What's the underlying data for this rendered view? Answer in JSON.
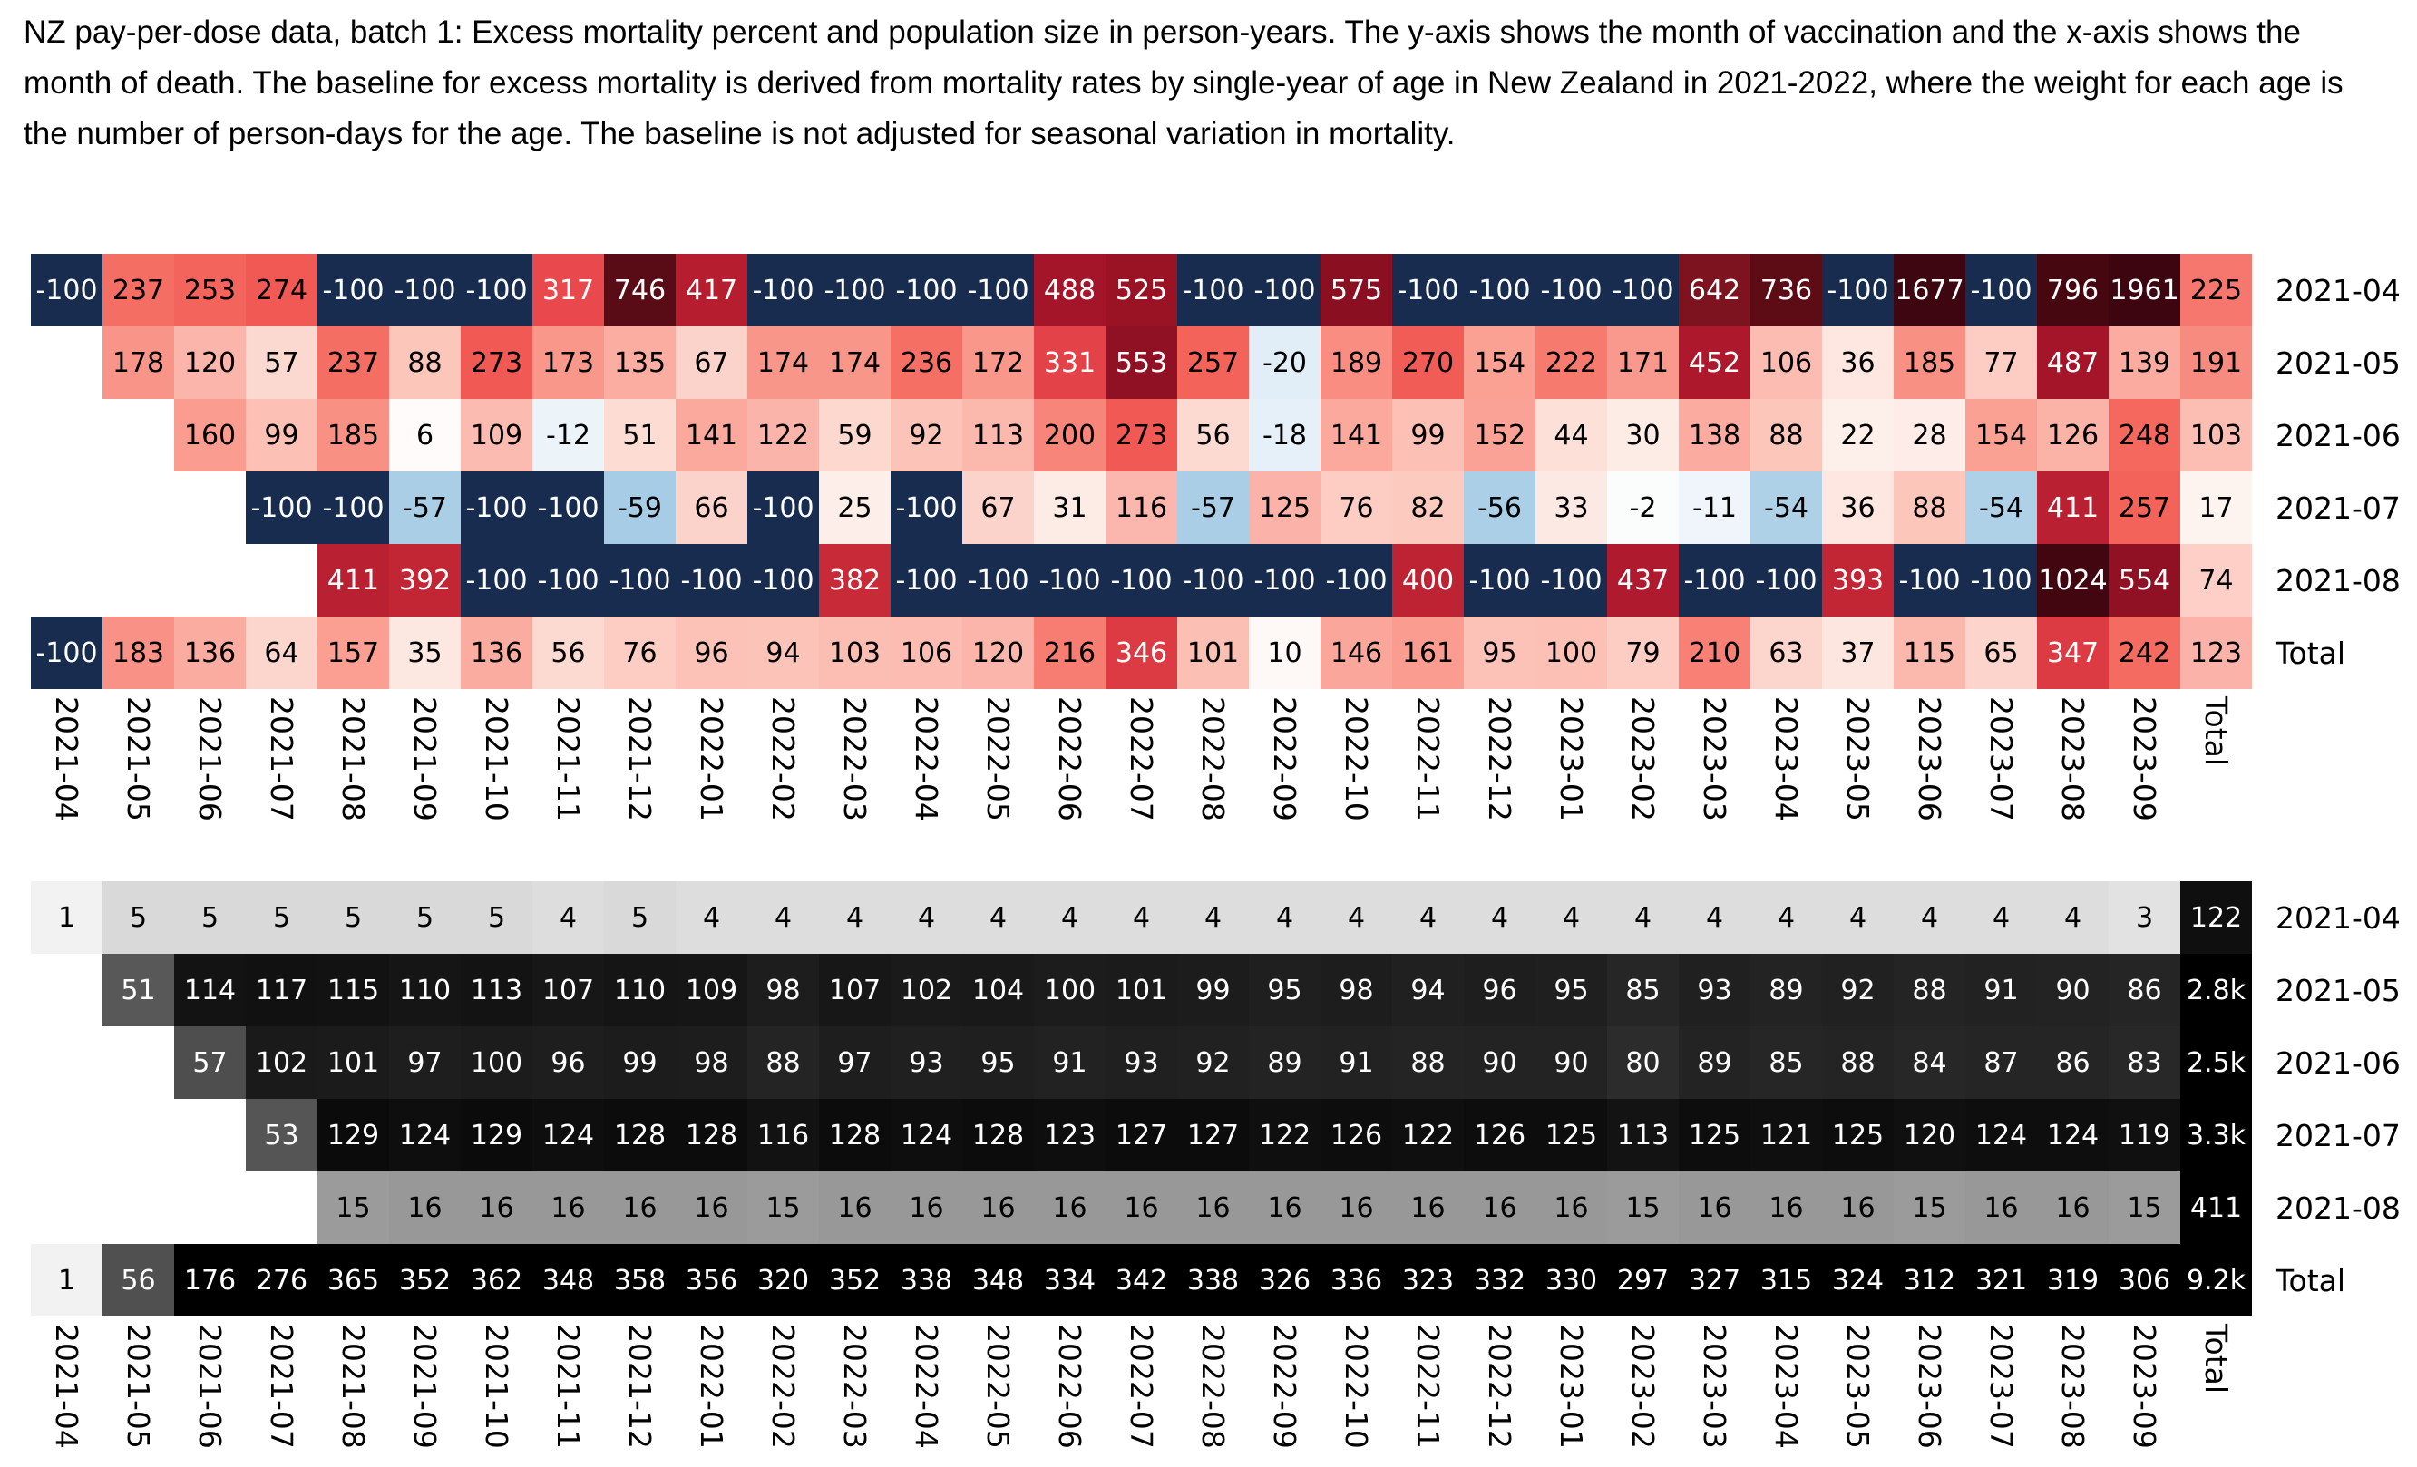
{
  "title": "NZ pay-per-dose data, batch 1: Excess mortality percent and population size in person-years. The y-axis shows the month of vaccination and the x-axis shows the month of death. The baseline for excess mortality is derived from mortality rates by single-year of age in New Zealand in 2021-2022, where the weight for each age is the number of person-days for the age. The baseline is not adjusted for seasonal variation in mortality.",
  "chart_data": [
    {
      "type": "heatmap",
      "name": "excess-mortality-percent",
      "xlabel": "month of death",
      "ylabel": "month of vaccination",
      "x_labels": [
        "2021-04",
        "2021-05",
        "2021-06",
        "2021-07",
        "2021-08",
        "2021-09",
        "2021-10",
        "2021-11",
        "2021-12",
        "2022-01",
        "2022-02",
        "2022-03",
        "2022-04",
        "2022-05",
        "2022-06",
        "2022-07",
        "2022-08",
        "2022-09",
        "2022-10",
        "2022-11",
        "2022-12",
        "2023-01",
        "2023-02",
        "2023-03",
        "2023-04",
        "2023-05",
        "2023-06",
        "2023-07",
        "2023-08",
        "2023-09",
        "Total"
      ],
      "rows": [
        {
          "label": "2021-04",
          "values": [
            -100,
            237,
            253,
            274,
            -100,
            -100,
            -100,
            317,
            746,
            417,
            -100,
            -100,
            -100,
            -100,
            488,
            525,
            -100,
            -100,
            575,
            -100,
            -100,
            -100,
            -100,
            642,
            736,
            -100,
            1677,
            -100,
            796,
            1961,
            225
          ]
        },
        {
          "label": "2021-05",
          "values": [
            null,
            178,
            120,
            57,
            237,
            88,
            273,
            173,
            135,
            67,
            174,
            174,
            236,
            172,
            331,
            553,
            257,
            -20,
            189,
            270,
            154,
            222,
            171,
            452,
            106,
            36,
            185,
            77,
            487,
            139,
            191
          ]
        },
        {
          "label": "2021-06",
          "values": [
            null,
            null,
            160,
            99,
            185,
            6,
            109,
            -12,
            51,
            141,
            122,
            59,
            92,
            113,
            200,
            273,
            56,
            -18,
            141,
            99,
            152,
            44,
            30,
            138,
            88,
            22,
            28,
            154,
            126,
            248,
            103
          ]
        },
        {
          "label": "2021-07",
          "values": [
            null,
            null,
            null,
            -100,
            -100,
            -57,
            -100,
            -100,
            -59,
            66,
            -100,
            25,
            -100,
            67,
            31,
            116,
            -57,
            125,
            76,
            82,
            -56,
            33,
            -2,
            -11,
            -54,
            36,
            88,
            -54,
            411,
            257,
            17
          ]
        },
        {
          "label": "2021-08",
          "values": [
            null,
            null,
            null,
            null,
            411,
            392,
            -100,
            -100,
            -100,
            -100,
            -100,
            382,
            -100,
            -100,
            -100,
            -100,
            -100,
            -100,
            -100,
            400,
            -100,
            -100,
            437,
            -100,
            -100,
            393,
            -100,
            -100,
            1024,
            554,
            74
          ]
        },
        {
          "label": "Total",
          "values": [
            -100,
            183,
            136,
            64,
            157,
            35,
            136,
            56,
            76,
            96,
            94,
            103,
            106,
            120,
            216,
            346,
            101,
            10,
            146,
            161,
            95,
            100,
            79,
            210,
            63,
            37,
            115,
            65,
            347,
            242,
            123
          ]
        }
      ],
      "color_scale": [
        [
          -100,
          "#182c50"
        ],
        [
          -60,
          "#a5cbe4"
        ],
        [
          -50,
          "#b5d5ea"
        ],
        [
          -35,
          "#cde2f0"
        ],
        [
          -20,
          "#e2eef7"
        ],
        [
          -10,
          "#f0f6fa"
        ],
        [
          -3,
          "#fafcfd"
        ],
        [
          0,
          "#fefefe"
        ],
        [
          8,
          "#fefaf8"
        ],
        [
          20,
          "#fdf1ec"
        ],
        [
          32,
          "#fdeae4"
        ],
        [
          45,
          "#fde0d8"
        ],
        [
          60,
          "#fcd7ce"
        ],
        [
          75,
          "#fdcec5"
        ],
        [
          90,
          "#fcc5ba"
        ],
        [
          105,
          "#fcbdb2"
        ],
        [
          120,
          "#fbb5ab"
        ],
        [
          140,
          "#fbaa9e"
        ],
        [
          160,
          "#fa9d90"
        ],
        [
          180,
          "#f99388"
        ],
        [
          200,
          "#f88579"
        ],
        [
          220,
          "#f77b70"
        ],
        [
          240,
          "#f46c62"
        ],
        [
          260,
          "#f36159"
        ],
        [
          280,
          "#f05652"
        ],
        [
          300,
          "#ec4e4f"
        ],
        [
          320,
          "#e8474c"
        ],
        [
          340,
          "#e03e46"
        ],
        [
          360,
          "#d63540"
        ],
        [
          380,
          "#ca2b38"
        ],
        [
          400,
          "#bd2332"
        ],
        [
          425,
          "#b31c2f"
        ],
        [
          460,
          "#ab172b"
        ],
        [
          495,
          "#a31428"
        ],
        [
          530,
          "#971325"
        ],
        [
          560,
          "#8e1022"
        ],
        [
          600,
          "#840f1f"
        ],
        [
          650,
          "#7a141f"
        ],
        [
          700,
          "#690f1a"
        ],
        [
          740,
          "#5c0c16"
        ],
        [
          800,
          "#460711"
        ],
        [
          900,
          "#420711"
        ],
        [
          1100,
          "#410610"
        ],
        [
          1500,
          "#3f0610"
        ],
        [
          2000,
          "#3d0510"
        ]
      ]
    },
    {
      "type": "heatmap",
      "name": "population-person-years",
      "xlabel": "month of death",
      "ylabel": "month of vaccination",
      "x_labels": [
        "2021-04",
        "2021-05",
        "2021-06",
        "2021-07",
        "2021-08",
        "2021-09",
        "2021-10",
        "2021-11",
        "2021-12",
        "2022-01",
        "2022-02",
        "2022-03",
        "2022-04",
        "2022-05",
        "2022-06",
        "2022-07",
        "2022-08",
        "2022-09",
        "2022-10",
        "2022-11",
        "2022-12",
        "2023-01",
        "2023-02",
        "2023-03",
        "2023-04",
        "2023-05",
        "2023-06",
        "2023-07",
        "2023-08",
        "2023-09",
        "Total"
      ],
      "rows": [
        {
          "label": "2021-04",
          "values": [
            1,
            5,
            5,
            5,
            5,
            5,
            5,
            4,
            5,
            4,
            4,
            4,
            4,
            4,
            4,
            4,
            4,
            4,
            4,
            4,
            4,
            4,
            4,
            4,
            4,
            4,
            4,
            4,
            4,
            3,
            "122"
          ]
        },
        {
          "label": "2021-05",
          "values": [
            null,
            51,
            114,
            117,
            115,
            110,
            113,
            107,
            110,
            109,
            98,
            107,
            102,
            104,
            100,
            101,
            99,
            95,
            98,
            94,
            96,
            95,
            85,
            93,
            89,
            92,
            88,
            91,
            90,
            86,
            "2.8k"
          ]
        },
        {
          "label": "2021-06",
          "values": [
            null,
            null,
            57,
            102,
            101,
            97,
            100,
            96,
            99,
            98,
            88,
            97,
            93,
            95,
            91,
            93,
            92,
            89,
            91,
            88,
            90,
            90,
            80,
            89,
            85,
            88,
            84,
            87,
            86,
            83,
            "2.5k"
          ]
        },
        {
          "label": "2021-07",
          "values": [
            null,
            null,
            null,
            53,
            129,
            124,
            129,
            124,
            128,
            128,
            116,
            128,
            124,
            128,
            123,
            127,
            127,
            122,
            126,
            122,
            126,
            125,
            113,
            125,
            121,
            125,
            120,
            124,
            124,
            119,
            "3.3k"
          ]
        },
        {
          "label": "2021-08",
          "values": [
            null,
            null,
            null,
            null,
            15,
            16,
            16,
            16,
            16,
            16,
            15,
            16,
            16,
            16,
            16,
            16,
            16,
            16,
            16,
            16,
            16,
            16,
            15,
            16,
            16,
            16,
            15,
            16,
            16,
            15,
            "411"
          ]
        },
        {
          "label": "Total",
          "values": [
            1,
            56,
            176,
            276,
            365,
            352,
            362,
            348,
            358,
            356,
            320,
            352,
            338,
            348,
            334,
            342,
            338,
            326,
            336,
            323,
            332,
            330,
            297,
            327,
            315,
            324,
            312,
            321,
            319,
            306,
            "9.2k"
          ]
        }
      ],
      "color_scale": [
        [
          1,
          "#f2f2f2"
        ],
        [
          2,
          "#e9e9e9"
        ],
        [
          3,
          "#e2e2e2"
        ],
        [
          4,
          "#dddddd"
        ],
        [
          5,
          "#d9d9d9"
        ],
        [
          8,
          "#c2c2c2"
        ],
        [
          12,
          "#a9a9a9"
        ],
        [
          15,
          "#9b9b9b"
        ],
        [
          16,
          "#989898"
        ],
        [
          20,
          "#8b8b8b"
        ],
        [
          30,
          "#737373"
        ],
        [
          40,
          "#646464"
        ],
        [
          51,
          "#585858"
        ],
        [
          57,
          "#4e4e4e"
        ],
        [
          65,
          "#404040"
        ],
        [
          75,
          "#313131"
        ],
        [
          85,
          "#262626"
        ],
        [
          95,
          "#1f1f1f"
        ],
        [
          105,
          "#181818"
        ],
        [
          115,
          "#121212"
        ],
        [
          125,
          "#0d0d0d"
        ],
        [
          140,
          "#070707"
        ],
        [
          160,
          "#020202"
        ],
        [
          175,
          "#000000"
        ],
        [
          10000,
          "#000000"
        ]
      ]
    }
  ]
}
